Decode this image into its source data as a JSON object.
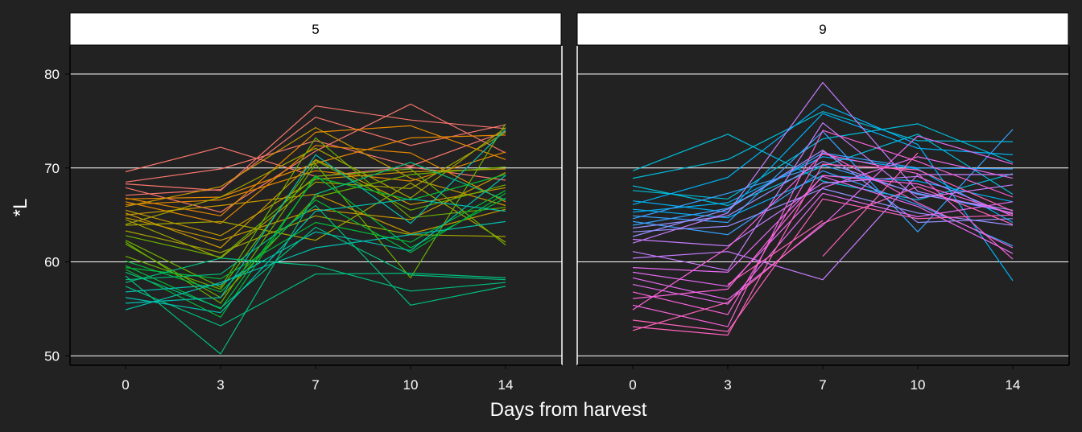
{
  "chart_data": {
    "type": "line",
    "xlabel": "Days from harvest",
    "ylabel": "*L",
    "x_ticks": [
      0,
      3,
      7,
      10,
      14
    ],
    "y_ticks": [
      50,
      60,
      70,
      80
    ],
    "ylim": [
      49,
      83
    ],
    "grid": true,
    "panels": [
      {
        "label": "5",
        "colors": [
          "#F8766D",
          "#E58700",
          "#C99800",
          "#A3A500",
          "#6BB100",
          "#00BA38",
          "#00BF7D",
          "#00C0AF"
        ],
        "series": [
          {
            "values": [
              69.6,
              72.2,
              69.1,
              70.1,
              68.7
            ]
          },
          {
            "values": [
              68.5,
              69.9,
              72.9,
              70.2,
              73.9
            ]
          },
          {
            "values": [
              68.3,
              67.6,
              76.6,
              75.1,
              74.2
            ]
          },
          {
            "values": [
              67.9,
              65.3,
              71.8,
              76.8,
              71.6
            ]
          },
          {
            "values": [
              67.1,
              67.7,
              75.4,
              72.4,
              74.6
            ]
          },
          {
            "values": [
              66.8,
              64.9,
              73.8,
              74.5,
              70.9
            ]
          },
          {
            "values": [
              66.7,
              66.9,
              70.5,
              73.2,
              73.5
            ]
          },
          {
            "values": [
              66.4,
              64.1,
              72.4,
              71.6,
              66.4
            ]
          },
          {
            "values": [
              66.1,
              66.6,
              69.7,
              68.6,
              71.7
            ]
          },
          {
            "values": [
              65.9,
              68.0,
              74.3,
              68.9,
              66.0
            ]
          },
          {
            "values": [
              65.5,
              62.8,
              68.8,
              69.6,
              69.9
            ]
          },
          {
            "values": [
              65.2,
              61.5,
              70.9,
              66.1,
              67.9
            ]
          },
          {
            "values": [
              65.0,
              66.0,
              67.2,
              63.0,
              65.6
            ]
          },
          {
            "values": [
              64.7,
              62.3,
              65.6,
              64.5,
              69.5
            ]
          },
          {
            "values": [
              64.5,
              60.4,
              68.5,
              67.8,
              73.8
            ]
          },
          {
            "values": [
              64.0,
              66.9,
              72.1,
              66.8,
              74.3
            ]
          },
          {
            "values": [
              63.9,
              64.3,
              62.3,
              68.4,
              62.1
            ]
          },
          {
            "values": [
              63.3,
              61.0,
              64.9,
              62.9,
              62.7
            ]
          },
          {
            "values": [
              62.8,
              60.5,
              69.1,
              69.9,
              61.8
            ]
          },
          {
            "values": [
              62.3,
              57.3,
              73.2,
              64.7,
              65.8
            ]
          },
          {
            "values": [
              62.1,
              55.6,
              70.4,
              58.3,
              74.7
            ]
          },
          {
            "values": [
              61.9,
              56.2,
              66.9,
              69.3,
              70.1
            ]
          },
          {
            "values": [
              60.6,
              57.1,
              70.8,
              65.5,
              68.2
            ]
          },
          {
            "values": [
              60.1,
              56.8,
              66.6,
              61.0,
              67.3
            ]
          },
          {
            "values": [
              59.6,
              55.0,
              69.0,
              66.6,
              69.3
            ]
          },
          {
            "values": [
              59.4,
              58.2,
              64.2,
              62.1,
              67.6
            ]
          },
          {
            "values": [
              59.2,
              54.1,
              69.2,
              61.5,
              66.8
            ]
          },
          {
            "values": [
              58.9,
              55.1,
              63.7,
              58.6,
              58.1
            ]
          },
          {
            "values": [
              58.5,
              50.2,
              67.2,
              70.6,
              66.6
            ]
          },
          {
            "values": [
              58.1,
              58.7,
              66.0,
              55.4,
              57.4
            ]
          },
          {
            "values": [
              57.8,
              60.4,
              59.6,
              56.9,
              57.8
            ]
          },
          {
            "values": [
              57.4,
              53.2,
              58.7,
              58.8,
              58.3
            ]
          },
          {
            "values": [
              56.8,
              57.6,
              63.2,
              61.2,
              69.2
            ]
          },
          {
            "values": [
              56.2,
              54.6,
              65.4,
              66.7,
              65.4
            ]
          },
          {
            "values": [
              55.6,
              56.2,
              71.4,
              64.1,
              74.1
            ]
          },
          {
            "values": [
              54.9,
              57.8,
              61.5,
              62.9,
              64.3
            ]
          }
        ]
      },
      {
        "label": "9",
        "colors": [
          "#00BCD8",
          "#00B0F6",
          "#35A2FF",
          "#9590FF",
          "#C77CFF",
          "#E76BF3",
          "#FA62DB",
          "#FF62BC"
        ],
        "series": [
          {
            "values": [
              69.7,
              73.6,
              68.6,
              66.6,
              69.4
            ]
          },
          {
            "values": [
              68.9,
              70.9,
              76.0,
              72.9,
              72.8
            ]
          },
          {
            "values": [
              68.1,
              66.0,
              70.2,
              73.6,
              67.2
            ]
          },
          {
            "values": [
              67.6,
              66.7,
              73.1,
              74.7,
              70.6
            ]
          },
          {
            "values": [
              66.5,
              65.3,
              75.8,
              72.1,
              71.4
            ]
          },
          {
            "values": [
              66.1,
              69.0,
              76.8,
              72.5,
              58.0
            ]
          },
          {
            "values": [
              65.6,
              64.7,
              69.2,
              68.6,
              66.4
            ]
          },
          {
            "values": [
              65.3,
              66.3,
              71.2,
              69.9,
              64.2
            ]
          },
          {
            "values": [
              64.9,
              64.2,
              73.9,
              63.2,
              74.1
            ]
          },
          {
            "values": [
              64.6,
              67.3,
              70.3,
              67.3,
              65.2
            ]
          },
          {
            "values": [
              64.3,
              62.9,
              69.7,
              66.1,
              61.7
            ]
          },
          {
            "values": [
              63.9,
              65.7,
              71.6,
              70.0,
              69.9
            ]
          },
          {
            "values": [
              63.6,
              64.9,
              70.7,
              67.2,
              65.5
            ]
          },
          {
            "values": [
              63.2,
              63.8,
              67.8,
              65.2,
              63.9
            ]
          },
          {
            "values": [
              62.7,
              65.6,
              71.9,
              64.2,
              64.6
            ]
          },
          {
            "values": [
              62.4,
              61.7,
              68.4,
              69.1,
              64.9
            ]
          },
          {
            "values": [
              62.0,
              65.2,
              79.1,
              67.5,
              65.2
            ]
          },
          {
            "values": [
              61.1,
              59.1,
              74.8,
              66.8,
              68.2
            ]
          },
          {
            "values": [
              60.4,
              61.1,
              58.1,
              69.3,
              69.3
            ]
          },
          {
            "values": [
              59.4,
              58.9,
              69.1,
              65.9,
              60.9
            ]
          },
          {
            "values": [
              58.9,
              57.4,
              67.9,
              71.2,
              68.9
            ]
          },
          {
            "values": [
              58.3,
              56.0,
              63.9,
              73.4,
              70.4
            ]
          },
          {
            "values": [
              57.6,
              55.5,
              67.3,
              64.8,
              66.4
            ]
          },
          {
            "values": [
              56.8,
              54.4,
              71.8,
              66.3,
              61.5
            ]
          },
          {
            "values": [
              56.1,
              57.1,
              69.2,
              68.3,
              65.1
            ]
          },
          {
            "values": [
              55.4,
              53.1,
              74.0,
              70.7,
              66.9
            ]
          },
          {
            "values": [
              54.9,
              61.5,
              71.5,
              69.4,
              60.3
            ]
          },
          {
            "values": [
              53.8,
              52.6,
              66.7,
              64.6,
              65.0
            ]
          },
          {
            "values": [
              53.1,
              52.2,
              70.4,
              69.8,
              65.4
            ]
          },
          {
            "values": [
              52.7,
              55.7,
              64.1,
              68.0,
              64.0
            ]
          }
        ],
        "extra_segments": [
          {
            "x": [
              7,
              10
            ],
            "y": [
              60.6,
              71.6
            ]
          },
          {
            "x": [
              3,
              7
            ],
            "y": [
              57.6,
              64.4
            ]
          }
        ]
      }
    ]
  }
}
